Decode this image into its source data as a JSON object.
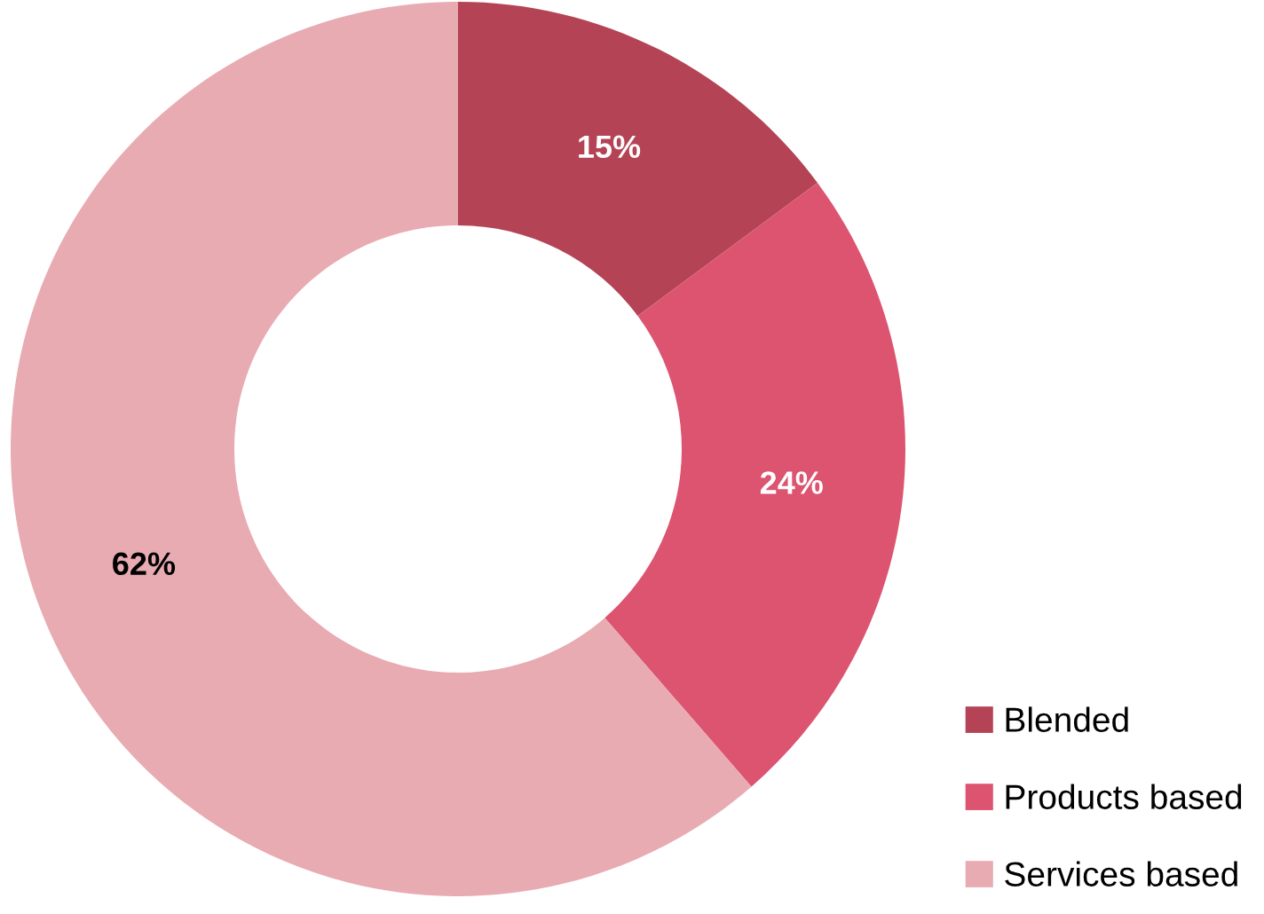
{
  "chart_data": {
    "type": "donut",
    "categories": [
      "Blended",
      "Products based",
      "Services based"
    ],
    "values": [
      15,
      24,
      62
    ],
    "colors": [
      "#b44455",
      "#dc5470",
      "#e8abb2"
    ],
    "value_labels": [
      "15%",
      "24%",
      "62%"
    ],
    "legend": "bottom right"
  }
}
